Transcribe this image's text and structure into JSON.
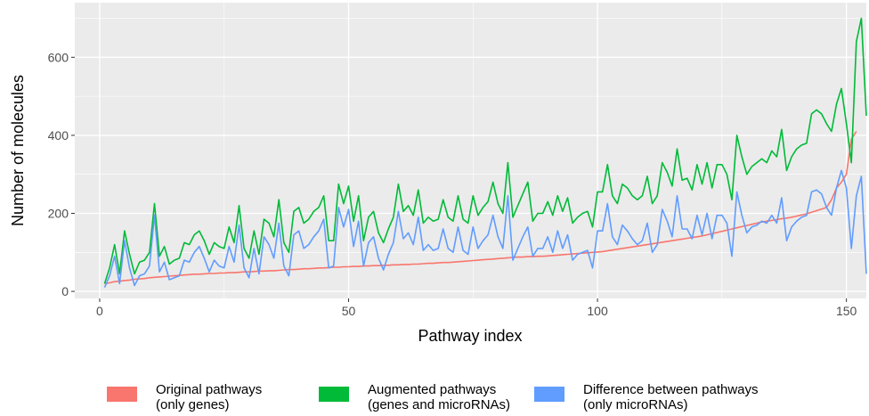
{
  "chart_data": {
    "type": "line",
    "title": "",
    "xlabel": "Pathway index",
    "ylabel": "Number of molecules",
    "xlim": [
      -5,
      154
    ],
    "ylim": [
      -18,
      740
    ],
    "x_ticks": [
      0,
      50,
      100,
      150
    ],
    "y_ticks": [
      0,
      200,
      400,
      600
    ],
    "grid": true,
    "legend_position": "bottom",
    "series": [
      {
        "name": "Original pathways\n(only genes)",
        "color": "#F8766D",
        "values": [
          20,
          22,
          25,
          26,
          28,
          29,
          31,
          32,
          33,
          35,
          36,
          37,
          38,
          39,
          40,
          41,
          42,
          43,
          44,
          44,
          45,
          46,
          46,
          47,
          47,
          48,
          48,
          49,
          50,
          50,
          51,
          52,
          52,
          53,
          53,
          54,
          55,
          56,
          56,
          57,
          58,
          58,
          59,
          60,
          60,
          61,
          62,
          62,
          63,
          63,
          64,
          64,
          65,
          65,
          66,
          66,
          67,
          67,
          68,
          68,
          69,
          69,
          70,
          70,
          71,
          72,
          72,
          73,
          74,
          74,
          75,
          76,
          77,
          78,
          79,
          80,
          81,
          82,
          83,
          84,
          85,
          86,
          87,
          88,
          88,
          89,
          89,
          90,
          90,
          91,
          92,
          93,
          94,
          95,
          96,
          97,
          98,
          99,
          100,
          101,
          102,
          104,
          106,
          108,
          110,
          112,
          114,
          116,
          118,
          120,
          122,
          124,
          126,
          128,
          130,
          132,
          134,
          136,
          138,
          140,
          142,
          145,
          148,
          151,
          154,
          157,
          160,
          163,
          166,
          169,
          172,
          175,
          178,
          180,
          182,
          184,
          186,
          188,
          190,
          193,
          196,
          199,
          203,
          207,
          211,
          215,
          235,
          265,
          280,
          300,
          390,
          410
        ]
      },
      {
        "name": "Augmented pathways\n(genes and microRNAs)",
        "color": "#00BA38",
        "values": [
          20,
          60,
          120,
          45,
          155,
          95,
          45,
          75,
          80,
          100,
          225,
          90,
          115,
          70,
          80,
          85,
          125,
          120,
          145,
          155,
          130,
          95,
          125,
          115,
          110,
          165,
          125,
          220,
          110,
          85,
          155,
          95,
          185,
          175,
          140,
          235,
          125,
          100,
          205,
          215,
          175,
          185,
          205,
          215,
          245,
          130,
          130,
          275,
          225,
          270,
          180,
          245,
          130,
          190,
          205,
          150,
          125,
          160,
          190,
          275,
          205,
          220,
          195,
          260,
          175,
          190,
          180,
          185,
          235,
          190,
          180,
          245,
          185,
          175,
          245,
          195,
          215,
          230,
          280,
          225,
          200,
          330,
          190,
          220,
          250,
          280,
          180,
          200,
          200,
          230,
          195,
          245,
          205,
          240,
          175,
          190,
          200,
          205,
          165,
          255,
          255,
          325,
          245,
          225,
          275,
          265,
          245,
          235,
          245,
          295,
          225,
          245,
          330,
          305,
          270,
          365,
          285,
          290,
          260,
          325,
          275,
          330,
          265,
          325,
          325,
          300,
          235,
          400,
          345,
          300,
          320,
          330,
          340,
          330,
          360,
          345,
          415,
          310,
          345,
          365,
          375,
          380,
          455,
          465,
          455,
          430,
          410,
          480,
          520,
          430,
          330,
          640,
          700,
          450
        ]
      },
      {
        "name": "Difference between pathways\n(only microRNAs)",
        "color": "#619CFF",
        "values": [
          10,
          40,
          90,
          20,
          130,
          60,
          15,
          40,
          45,
          65,
          195,
          50,
          75,
          30,
          35,
          40,
          80,
          75,
          100,
          115,
          85,
          50,
          80,
          65,
          60,
          115,
          75,
          170,
          60,
          35,
          110,
          45,
          140,
          120,
          85,
          175,
          65,
          40,
          145,
          155,
          110,
          120,
          140,
          155,
          185,
          60,
          65,
          215,
          165,
          210,
          115,
          180,
          65,
          125,
          140,
          85,
          55,
          95,
          125,
          205,
          135,
          150,
          120,
          190,
          105,
          120,
          105,
          110,
          160,
          110,
          100,
          165,
          105,
          95,
          165,
          110,
          130,
          145,
          195,
          140,
          110,
          245,
          80,
          110,
          140,
          165,
          90,
          110,
          110,
          140,
          100,
          155,
          110,
          145,
          80,
          95,
          100,
          105,
          60,
          155,
          155,
          225,
          140,
          120,
          170,
          155,
          135,
          120,
          130,
          175,
          100,
          120,
          210,
          180,
          140,
          245,
          160,
          160,
          135,
          195,
          145,
          200,
          135,
          195,
          195,
          175,
          90,
          255,
          195,
          150,
          165,
          170,
          180,
          175,
          195,
          175,
          240,
          130,
          165,
          180,
          190,
          195,
          255,
          260,
          250,
          215,
          195,
          265,
          310,
          265,
          110,
          245,
          295,
          45
        ]
      }
    ]
  }
}
